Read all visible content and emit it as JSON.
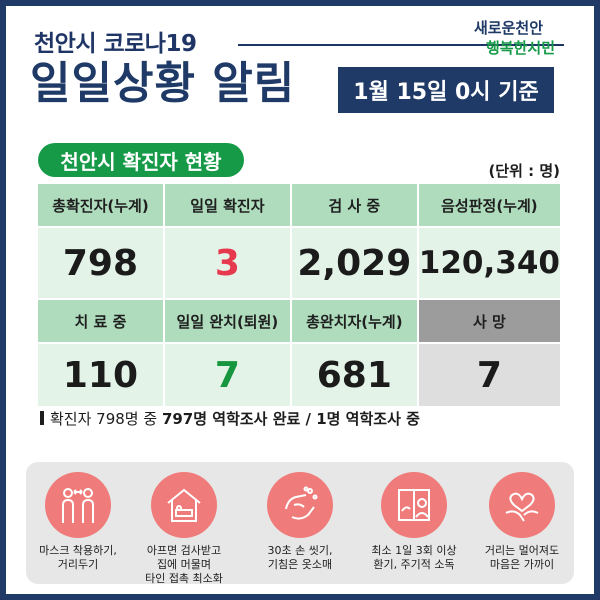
{
  "header": {
    "subtitle": "천안시 코로나19",
    "title": "일일상황 알림",
    "date": "1월 15일 0시 기준",
    "logo_line1": "새로운천안",
    "logo_line2": "행복한시민"
  },
  "section": {
    "label": "천안시 확진자 현황",
    "unit": "(단위 : 명)"
  },
  "stats": {
    "row1": [
      {
        "header": "총확진자(누계)",
        "value": "798"
      },
      {
        "header": "일일 확진자",
        "value": "3"
      },
      {
        "header": "검 사 중",
        "value": "2,029"
      },
      {
        "header": "음성판정(누계)",
        "value": "120,340"
      }
    ],
    "row2": [
      {
        "header": "치 료 중",
        "value": "110"
      },
      {
        "header": "일일 완치(퇴원)",
        "value": "7"
      },
      {
        "header": "총완치자(누계)",
        "value": "681"
      },
      {
        "header": "사 망",
        "value": "7"
      }
    ]
  },
  "note": {
    "prefix": "확진자 798명 중 ",
    "bold": "797명 역학조사 완료 / 1명 역학조사 중"
  },
  "tips": [
    {
      "icon": "two-people-mask-icon",
      "line1": "마스크 착용하기,",
      "line2": "거리두기",
      "line3": ""
    },
    {
      "icon": "house-bed-icon",
      "line1": "아프면 검사받고",
      "line2": "집에 머물며",
      "line3": "타인 접촉 최소화"
    },
    {
      "icon": "hand-washing-icon",
      "line1": "30초 손 씻기,",
      "line2": "기침은 옷소매",
      "line3": ""
    },
    {
      "icon": "window-ventilation-icon",
      "line1": "최소 1일 3회 이상",
      "line2": "환기, 주기적 소독",
      "line3": ""
    },
    {
      "icon": "heart-hands-icon",
      "line1": "거리는 멀어져도",
      "line2": "마음은 가까이",
      "line3": ""
    }
  ],
  "colors": {
    "navy": "#1f3a66",
    "green": "#169a48",
    "red": "#e6394e",
    "icon_circle": "#ef7c7a"
  }
}
